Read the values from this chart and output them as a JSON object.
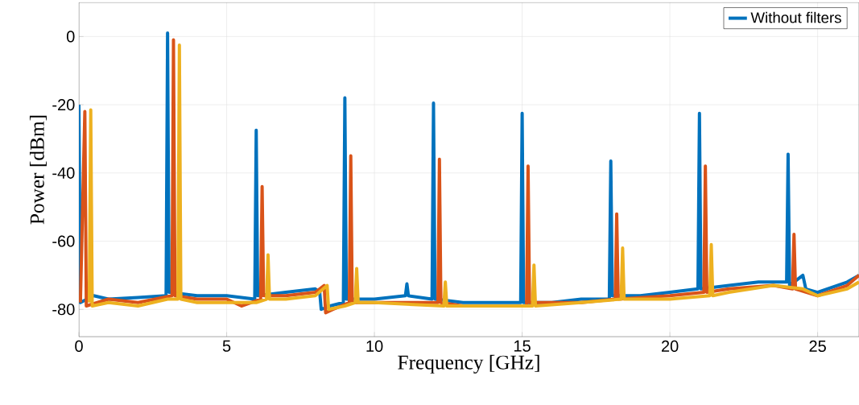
{
  "chart_data": {
    "type": "line",
    "xlabel": "Frequency [GHz]",
    "ylabel": "Power [dBm]",
    "xlim": [
      0,
      26.4
    ],
    "ylim": [
      -88,
      10
    ],
    "xticks": [
      0,
      5,
      10,
      15,
      20,
      25
    ],
    "yticks": [
      -80,
      -60,
      -40,
      -20,
      0
    ],
    "grid": true,
    "legend": "top right",
    "marker": "none",
    "line_style": "solid",
    "series": [
      {
        "name": "Without filters",
        "color": "#0072bd",
        "x": [
          0,
          0.05,
          0.5,
          1,
          2,
          2.95,
          3,
          3.05,
          4,
          5,
          5.95,
          6,
          6.05,
          7,
          8,
          8.15,
          8.2,
          8.5,
          8.95,
          9,
          9.05,
          10,
          11.05,
          11.1,
          11.15,
          11.95,
          12,
          12.05,
          13,
          14.95,
          15,
          15.05,
          16,
          17,
          17.95,
          18,
          18.05,
          19,
          20,
          20.95,
          21,
          21.05,
          22,
          23,
          23.95,
          24,
          24.05,
          24.5,
          24.6,
          25,
          26,
          26.4
        ],
        "values": [
          -20,
          -78,
          -76,
          -77,
          -76.5,
          -76,
          1,
          -75,
          -76,
          -76,
          -77,
          -27.5,
          -76,
          -75,
          -74,
          -75,
          -80,
          -79,
          -78,
          -18,
          -77,
          -77,
          -76,
          -72.5,
          -76,
          -77,
          -19.5,
          -77,
          -78,
          -78,
          -22.5,
          -78,
          -78,
          -77,
          -77,
          -36.5,
          -76,
          -76,
          -75,
          -74,
          -22.5,
          -74,
          -73,
          -72,
          -72,
          -34.5,
          -73,
          -70,
          -74,
          -75,
          -72,
          -70
        ]
      },
      {
        "color": "#d95319",
        "x": [
          0.05,
          0.2,
          0.25,
          1,
          2,
          3.15,
          3.2,
          3.25,
          4,
          5,
          5.5,
          6.15,
          6.2,
          6.25,
          7,
          8,
          8.3,
          8.35,
          8.6,
          9.15,
          9.2,
          9.25,
          10,
          12.15,
          12.2,
          12.25,
          13,
          15.15,
          15.2,
          15.25,
          17,
          18.15,
          18.2,
          18.25,
          20,
          21.15,
          21.2,
          21.25,
          22,
          23.5,
          24.15,
          24.2,
          24.25,
          25,
          26,
          26.4
        ],
        "values": [
          -78,
          -22,
          -79,
          -77,
          -78,
          -76,
          -1,
          -76,
          -77,
          -77,
          -79,
          -77,
          -44,
          -76,
          -76,
          -75,
          -73,
          -81,
          -80,
          -78,
          -35,
          -78,
          -78,
          -78,
          -36,
          -78,
          -79,
          -79,
          -38,
          -78,
          -78,
          -77,
          -52,
          -77,
          -76,
          -75,
          -38,
          -75,
          -74,
          -73,
          -74,
          -58,
          -74,
          -76,
          -73,
          -70
        ]
      },
      {
        "color": "#edb120",
        "x": [
          0.35,
          0.4,
          0.45,
          1,
          2,
          3,
          3.35,
          3.4,
          3.45,
          4,
          5,
          6,
          6.35,
          6.4,
          6.45,
          7,
          8,
          8.4,
          8.45,
          9,
          9.35,
          9.4,
          9.45,
          10,
          12.35,
          12.4,
          12.45,
          14,
          15.35,
          15.4,
          15.45,
          17,
          18.35,
          18.4,
          18.45,
          20,
          21.35,
          21.4,
          21.45,
          22,
          23.5,
          24.5,
          25,
          26,
          26.4
        ],
        "values": [
          -78,
          -21.5,
          -79,
          -78,
          -79,
          -77,
          -77,
          -2.5,
          -77,
          -78,
          -78,
          -78,
          -77,
          -64,
          -77,
          -77,
          -76,
          -73,
          -80,
          -79,
          -78,
          -68,
          -78,
          -78,
          -79,
          -72,
          -79,
          -79,
          -79,
          -67,
          -79,
          -78,
          -77,
          -62,
          -77,
          -77,
          -76,
          -61,
          -76,
          -75,
          -73,
          -74,
          -76,
          -74,
          -72
        ]
      }
    ]
  }
}
